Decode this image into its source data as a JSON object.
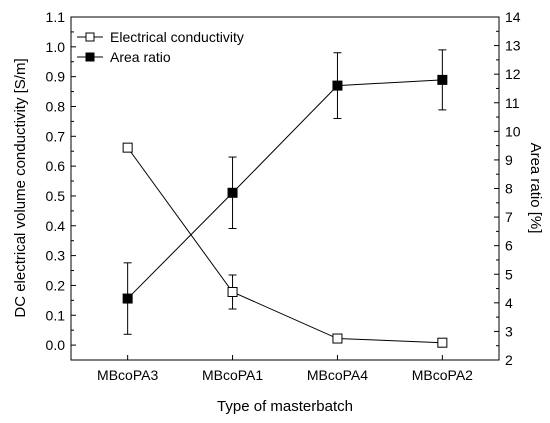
{
  "chart_data": {
    "type": "line",
    "categories": [
      "MBcoPA3",
      "MBcoPA1",
      "MBcoPA4",
      "MBcoPA2"
    ],
    "xlabel": "Type of masterbatch",
    "ylabel": "DC electrical volume conductivity [S/m]",
    "y2label": "Area ratio [%]",
    "ylim": [
      -0.05,
      1.1
    ],
    "y2lim": [
      2,
      14
    ],
    "yticks": [
      "0.0",
      "0.1",
      "0.2",
      "0.3",
      "0.4",
      "0.5",
      "0.6",
      "0.7",
      "0.8",
      "0.9",
      "1.0",
      "1.1"
    ],
    "y2ticks": [
      "2",
      "3",
      "4",
      "5",
      "6",
      "7",
      "8",
      "9",
      "10",
      "11",
      "12",
      "13",
      "14"
    ],
    "grid": false,
    "legend_position": "top-left",
    "series": [
      {
        "name": "Electrical conductivity",
        "axis": "left",
        "marker": "open-square",
        "values": [
          0.662,
          0.178,
          0.022,
          0.008
        ],
        "errors": [
          0.01,
          0.057,
          0.005,
          0.004
        ]
      },
      {
        "name": "Area ratio",
        "axis": "right",
        "marker": "filled-square",
        "values": [
          4.15,
          7.85,
          11.6,
          11.8
        ],
        "errors": [
          1.25,
          1.25,
          1.15,
          1.05
        ]
      }
    ]
  }
}
